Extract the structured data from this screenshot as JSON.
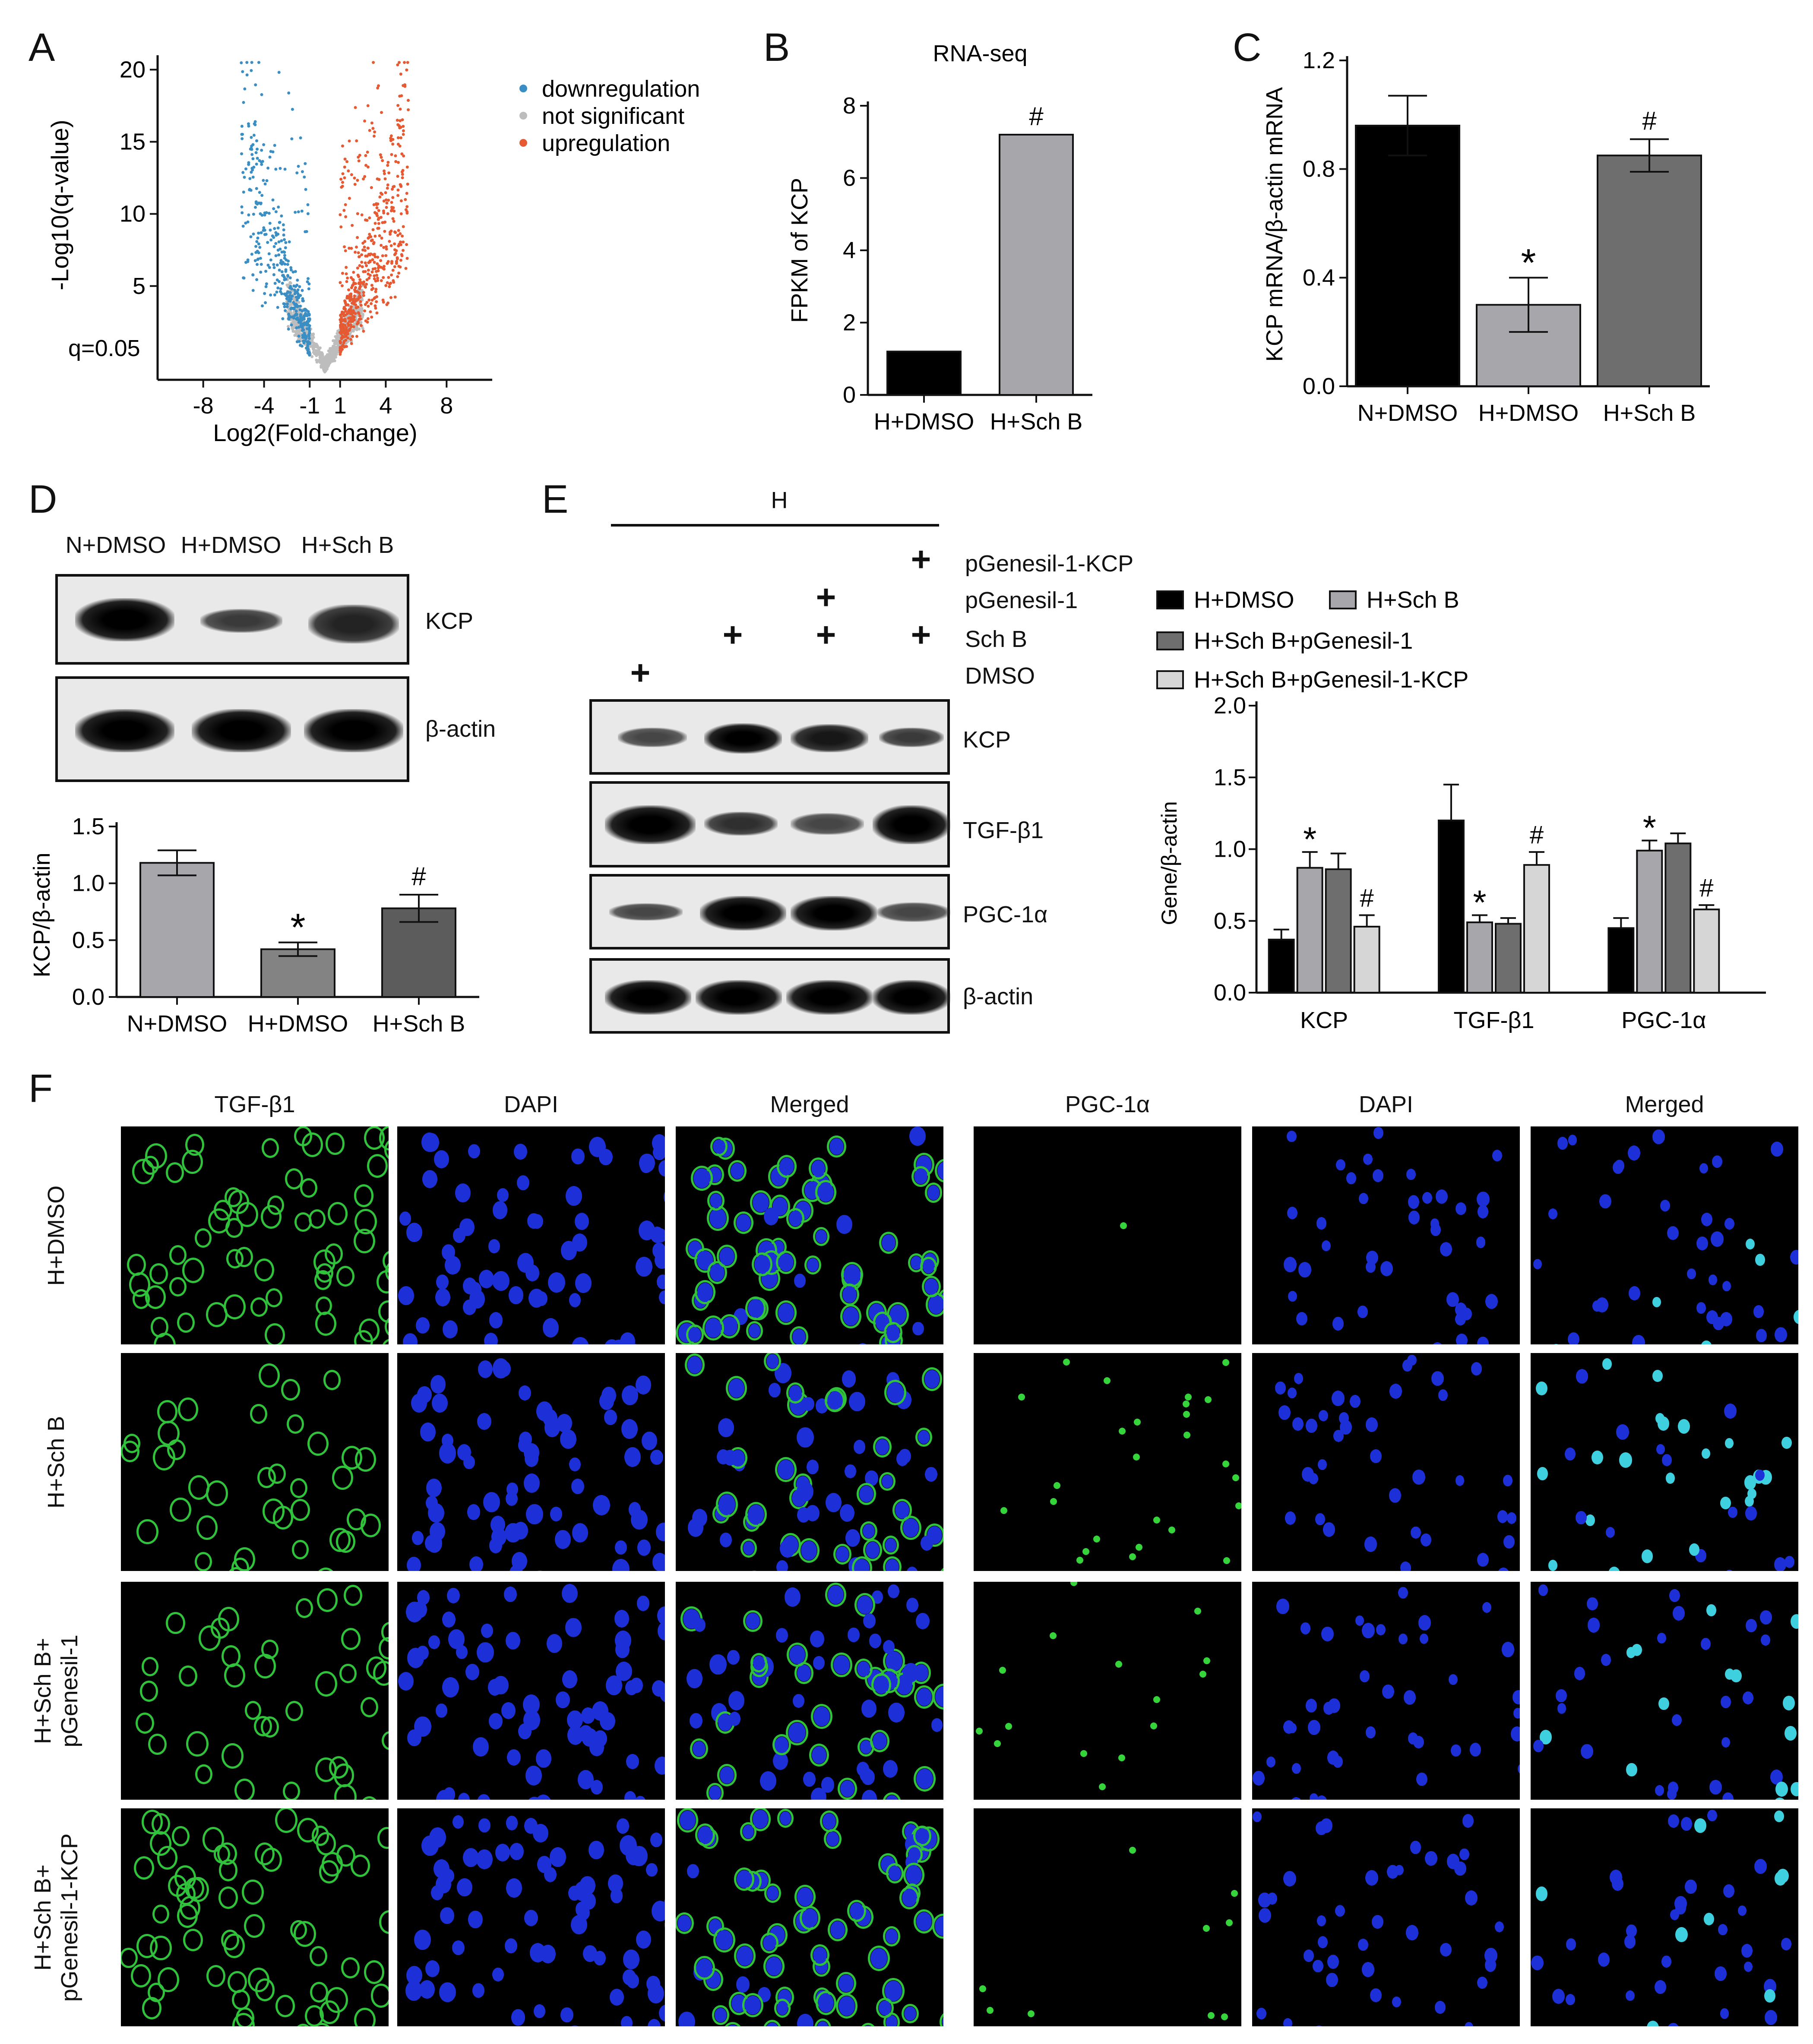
{
  "panels": {
    "A": "A",
    "B": "B",
    "C": "C",
    "D": "D",
    "E": "E",
    "F": "F"
  },
  "chart_data": [
    {
      "id": "A",
      "type": "scatter",
      "title": "",
      "xlabel": "Log2(Fold-change)",
      "ylabel": "-Log10(q-value)",
      "xlim": [
        -11,
        11
      ],
      "ylim": [
        -1.5,
        21
      ],
      "xticks": [
        -8,
        -4,
        -1,
        1,
        4,
        8
      ],
      "yticks": [
        5,
        10,
        15,
        20
      ],
      "threshold_label": "q=0.05",
      "legend_position": "top-right",
      "series": [
        {
          "name": "downregulation",
          "color": "#3a8ec4"
        },
        {
          "name": "not significant",
          "color": "#bdbdbd"
        },
        {
          "name": "upregulation",
          "color": "#e55a33"
        }
      ]
    },
    {
      "id": "B",
      "type": "bar",
      "title": "RNA-seq",
      "ylabel": "FPKM of KCP",
      "categories": [
        "H+DMSO",
        "H+Sch B"
      ],
      "values": [
        1.2,
        7.2
      ],
      "colors": [
        "#000000",
        "#a6a6ab"
      ],
      "marks": [
        "",
        "#"
      ],
      "ylim": [
        0,
        8
      ],
      "yticks": [
        0,
        2,
        4,
        6,
        8
      ]
    },
    {
      "id": "C",
      "type": "bar",
      "ylabel": "KCP mRNA/β-actin mRNA",
      "categories": [
        "N+DMSO",
        "H+DMSO",
        "H+Sch B"
      ],
      "values": [
        0.96,
        0.3,
        0.85
      ],
      "errors": [
        0.11,
        0.1,
        0.06
      ],
      "colors": [
        "#000000",
        "#a6a6ab",
        "#6e6e6e"
      ],
      "marks": [
        "",
        "*",
        "#"
      ],
      "ylim": [
        0,
        1.2
      ],
      "yticks": [
        "0.0",
        "0.4",
        "0.8",
        "1.2"
      ]
    },
    {
      "id": "D",
      "type": "bar",
      "ylabel": "KCP/β-actin",
      "categories": [
        "N+DMSO",
        "H+DMSO",
        "H+Sch B"
      ],
      "values": [
        1.18,
        0.42,
        0.78
      ],
      "errors": [
        0.11,
        0.06,
        0.12
      ],
      "colors": [
        "#a6a6ab",
        "#838383",
        "#5c5c5c"
      ],
      "marks": [
        "",
        "*",
        "#"
      ],
      "ylim": [
        0,
        1.5
      ],
      "yticks": [
        "0.0",
        "0.5",
        "1.0",
        "1.5"
      ]
    },
    {
      "id": "E",
      "type": "bar",
      "ylabel": "Gene/β-actin",
      "categories": [
        "KCP",
        "TGF-β1",
        "PGC-1α"
      ],
      "series": [
        {
          "name": "H+DMSO",
          "color": "#000000",
          "values": [
            0.37,
            1.2,
            0.45
          ],
          "errors": [
            0.07,
            0.25,
            0.07
          ],
          "marks": [
            "",
            "",
            ""
          ]
        },
        {
          "name": "H+Sch B",
          "color": "#a6a6ab",
          "values": [
            0.87,
            0.49,
            0.99
          ],
          "errors": [
            0.11,
            0.05,
            0.07
          ],
          "marks": [
            "*",
            "*",
            "*"
          ]
        },
        {
          "name": "H+Sch B+pGenesil-1",
          "color": "#6e6e6e",
          "values": [
            0.86,
            0.48,
            1.04
          ],
          "errors": [
            0.11,
            0.04,
            0.07
          ],
          "marks": [
            "",
            "",
            ""
          ]
        },
        {
          "name": "H+Sch B+pGenesil-1-KCP",
          "color": "#d6d6d6",
          "values": [
            0.46,
            0.89,
            0.58
          ],
          "errors": [
            0.08,
            0.09,
            0.03
          ],
          "marks": [
            "#",
            "#",
            "#"
          ]
        }
      ],
      "ylim": [
        0,
        2.0
      ],
      "yticks": [
        "0.0",
        "0.5",
        "1.0",
        "1.5",
        "2.0"
      ]
    }
  ],
  "blotD": {
    "lanes": [
      "N+DMSO",
      "H+DMSO",
      "H+Sch B"
    ],
    "rows": [
      "KCP",
      "β-actin"
    ]
  },
  "blotE": {
    "header": "H",
    "treatments": [
      "pGenesil-1-KCP",
      "pGenesil-1",
      "Sch B",
      "DMSO"
    ],
    "plus": "+",
    "rows": [
      "KCP",
      "TGF-β1",
      "PGC-1α",
      "β-actin"
    ]
  },
  "panelF": {
    "columns_left": [
      "TGF-β1",
      "DAPI",
      "Merged"
    ],
    "columns_right": [
      "PGC-1α",
      "DAPI",
      "Merged"
    ],
    "rows": [
      "H+DMSO",
      "H+Sch B",
      "H+Sch B+\npGenesil-1",
      "H+Sch B+\npGenesil-1-KCP"
    ]
  }
}
